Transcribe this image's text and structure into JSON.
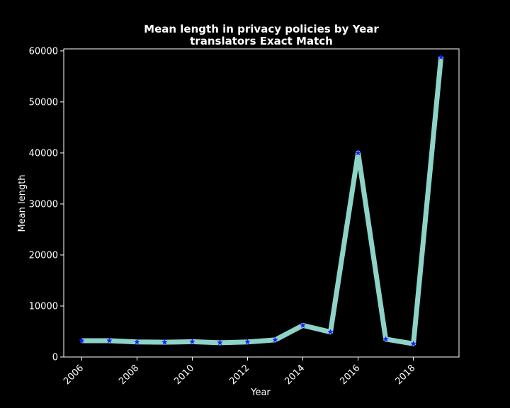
{
  "chart_data": {
    "type": "line",
    "title": "Mean length in privacy policies by Year",
    "subtitle": "translators Exact Match",
    "xlabel": "Year",
    "ylabel": "Mean length",
    "x": [
      2006,
      2007,
      2008,
      2009,
      2010,
      2011,
      2012,
      2013,
      2014,
      2015,
      2016,
      2017,
      2018,
      2019
    ],
    "series": [
      {
        "values": [
          3200,
          3200,
          2950,
          2900,
          3000,
          2800,
          2950,
          3350,
          6200,
          4900,
          40000,
          3500,
          2600,
          58800
        ]
      }
    ],
    "x_ticks": [
      "2006",
      "2008",
      "2010",
      "2012",
      "2014",
      "2016",
      "2018"
    ],
    "y_ticks": [
      "0",
      "10000",
      "20000",
      "30000",
      "40000",
      "50000",
      "60000"
    ],
    "xlim": [
      2005.35,
      2019.65
    ],
    "ylim": [
      0,
      60400
    ],
    "grid": false,
    "colors": {
      "background": "#000000",
      "line": "#8dd3c7",
      "marker": "#1a1aff",
      "text": "#ffffff",
      "axes": "#ffffff"
    }
  }
}
